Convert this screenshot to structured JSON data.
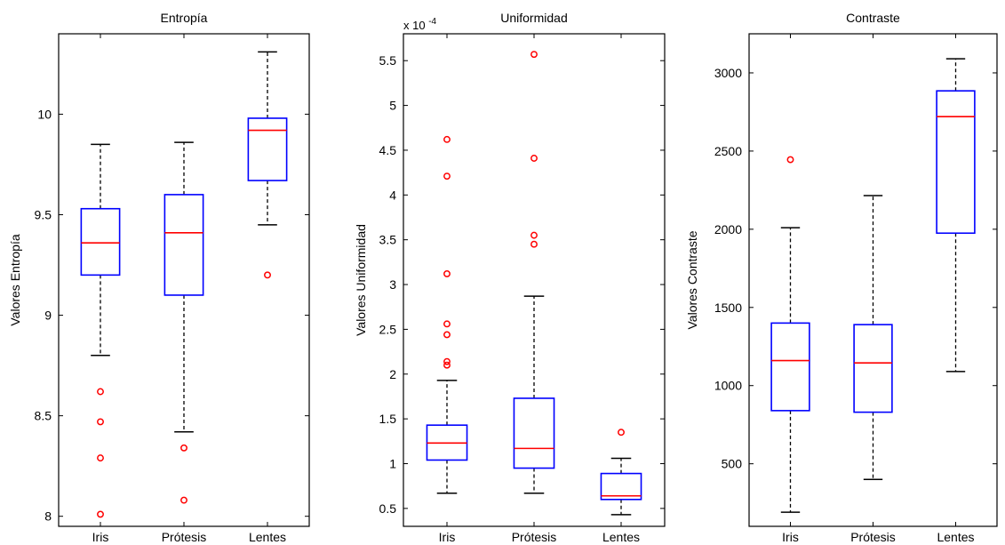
{
  "chart_data": [
    {
      "type": "box",
      "title": "Entropía",
      "ylabel": "Valores Entropía",
      "categories": [
        "Iris",
        "Prótesis",
        "Lentes"
      ],
      "ylim": [
        7.95,
        10.4
      ],
      "yticks": [
        8,
        8.5,
        9,
        9.5,
        10
      ],
      "ytick_labels": [
        "8",
        "8.5",
        "9",
        "9.5",
        "10"
      ],
      "exponent_label": "",
      "boxes": [
        {
          "whisker_low": 8.8,
          "q1": 9.2,
          "median": 9.36,
          "q3": 9.53,
          "whisker_high": 9.85,
          "outliers": [
            8.62,
            8.47,
            8.29,
            8.01
          ]
        },
        {
          "whisker_low": 8.42,
          "q1": 9.1,
          "median": 9.41,
          "q3": 9.6,
          "whisker_high": 9.86,
          "outliers": [
            8.34,
            8.08
          ]
        },
        {
          "whisker_low": 9.45,
          "q1": 9.67,
          "median": 9.92,
          "q3": 9.98,
          "whisker_high": 10.31,
          "outliers": [
            9.2
          ]
        }
      ]
    },
    {
      "type": "box",
      "title": "Uniformidad",
      "ylabel": "Valores Uniformidad",
      "categories": [
        "Iris",
        "Prótesis",
        "Lentes"
      ],
      "ylim": [
        0.3,
        5.8
      ],
      "yticks": [
        0.5,
        1,
        1.5,
        2,
        2.5,
        3,
        3.5,
        4,
        4.5,
        5,
        5.5
      ],
      "ytick_labels": [
        "0.5",
        "1",
        "1.5",
        "2",
        "2.5",
        "3",
        "3.5",
        "4",
        "4.5",
        "5",
        "5.5"
      ],
      "exponent_label": "x 10",
      "exponent_power": "-4",
      "boxes": [
        {
          "whisker_low": 0.67,
          "q1": 1.04,
          "median": 1.23,
          "q3": 1.43,
          "whisker_high": 1.93,
          "outliers": [
            4.62,
            4.21,
            3.12,
            2.56,
            2.44,
            2.14,
            2.1
          ]
        },
        {
          "whisker_low": 0.67,
          "q1": 0.95,
          "median": 1.17,
          "q3": 1.73,
          "whisker_high": 2.87,
          "outliers": [
            5.57,
            4.41,
            3.55,
            3.45
          ]
        },
        {
          "whisker_low": 0.43,
          "q1": 0.6,
          "median": 0.64,
          "q3": 0.89,
          "whisker_high": 1.06,
          "outliers": [
            1.35
          ]
        }
      ]
    },
    {
      "type": "box",
      "title": "Contraste",
      "ylabel": "Valores Contraste",
      "categories": [
        "Iris",
        "Prótesis",
        "Lentes"
      ],
      "ylim": [
        100,
        3250
      ],
      "yticks": [
        500,
        1000,
        1500,
        2000,
        2500,
        3000
      ],
      "ytick_labels": [
        "500",
        "1000",
        "1500",
        "2000",
        "2500",
        "3000"
      ],
      "exponent_label": "",
      "boxes": [
        {
          "whisker_low": 190,
          "q1": 840,
          "median": 1160,
          "q3": 1400,
          "whisker_high": 2010,
          "outliers": [
            2445
          ]
        },
        {
          "whisker_low": 400,
          "q1": 830,
          "median": 1145,
          "q3": 1390,
          "whisker_high": 2215,
          "outliers": []
        },
        {
          "whisker_low": 1090,
          "q1": 1975,
          "median": 2720,
          "q3": 2885,
          "whisker_high": 3090,
          "outliers": []
        }
      ]
    }
  ],
  "colors": {
    "box": "#0000ff",
    "median": "#ff0000",
    "outlier": "#ff0000",
    "whisker": "#000000",
    "axes": "#000000"
  }
}
